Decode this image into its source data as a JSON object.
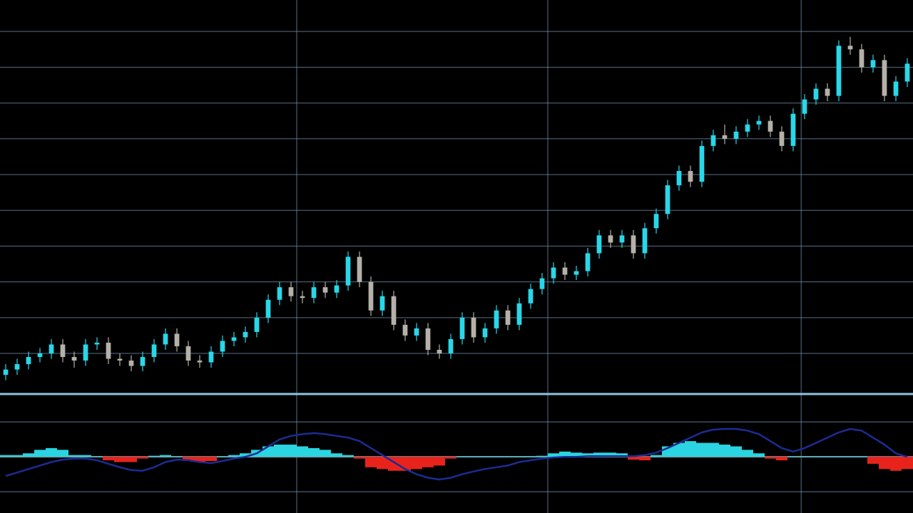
{
  "chart_data": [
    {
      "type": "candlestick",
      "up_color": "#29d7e8",
      "down_color": "#b5b1a9",
      "grid_color": "#6d8ea8",
      "xlim": [
        -0.5,
        79.5
      ],
      "xticks": [
        25.5,
        47.5,
        69.7
      ],
      "ylim": [
        -1.35,
        108.8
      ],
      "yticks": [
        10,
        20,
        30,
        40,
        50,
        60,
        70,
        80,
        90,
        100
      ],
      "grid": true,
      "open": [
        4,
        5.5,
        7,
        9,
        10,
        12.5,
        9,
        8,
        12.5,
        13,
        8.5,
        8,
        6.5,
        9,
        12.5,
        15.5,
        12,
        8,
        7.5,
        10.5,
        13.5,
        14.5,
        16,
        20,
        25,
        28.5,
        26,
        25.5,
        28.5,
        27,
        29,
        37,
        30,
        22,
        26,
        18,
        15,
        17,
        11,
        10,
        14,
        20,
        14.5,
        17,
        22,
        18,
        24,
        28,
        31,
        34,
        32,
        33,
        38,
        43,
        41,
        43,
        38,
        45,
        49,
        57,
        61,
        58,
        68,
        71,
        70,
        72,
        74,
        75,
        72,
        68,
        77,
        81,
        84,
        82,
        96,
        95,
        90,
        92,
        82,
        86
      ],
      "high": [
        7,
        8.5,
        10.5,
        11.5,
        14,
        14,
        10.5,
        14,
        14.5,
        14.5,
        10,
        9.5,
        10.5,
        14,
        17,
        17,
        13.5,
        9.5,
        12,
        15,
        16,
        17.5,
        21.5,
        26.5,
        30,
        30,
        27.5,
        30,
        30,
        30.5,
        38.5,
        38.5,
        31.5,
        27.5,
        27.5,
        19.5,
        18.5,
        18.5,
        12.5,
        15.5,
        21.5,
        21.5,
        18.5,
        23.5,
        23.5,
        25.5,
        29.5,
        32.5,
        35.5,
        35.5,
        34.5,
        39.5,
        44.5,
        44.5,
        44.5,
        44.5,
        46.5,
        50.5,
        58.5,
        62.5,
        62.5,
        69.5,
        72.5,
        74,
        73.5,
        75.5,
        76.5,
        76.5,
        73.5,
        78.5,
        82.5,
        85.5,
        85.5,
        97.5,
        98.5,
        96.5,
        93.5,
        93.5,
        87.5,
        92.5
      ],
      "low": [
        2.5,
        4,
        5.5,
        7.5,
        8.5,
        7.5,
        6,
        6.5,
        11,
        7,
        6.5,
        5,
        5,
        7.5,
        11,
        10.5,
        6.5,
        6,
        6,
        9,
        12,
        13,
        14.5,
        18.5,
        23.5,
        24.5,
        24,
        24,
        25.5,
        25.5,
        27.5,
        28.5,
        20.5,
        20.5,
        16.5,
        13.5,
        13.5,
        9.5,
        8.5,
        8.5,
        12.5,
        13,
        13,
        15.5,
        16.5,
        16.5,
        22.5,
        26.5,
        29.5,
        30.5,
        30.5,
        31.5,
        36.5,
        39.5,
        39.5,
        36.5,
        36.5,
        43.5,
        47.5,
        55.5,
        56.5,
        56.5,
        66.5,
        68.5,
        68.5,
        70.5,
        72.5,
        70.5,
        66.5,
        66.5,
        75.5,
        79.5,
        80.5,
        80.5,
        93.5,
        88.5,
        88.5,
        80.5,
        80.5,
        84.5
      ],
      "close": [
        5.5,
        7,
        9,
        10,
        12.5,
        9,
        8,
        12.5,
        13,
        8.5,
        8,
        6.5,
        9,
        12.5,
        15.5,
        12,
        8,
        7.5,
        10.5,
        13.5,
        14.5,
        16,
        20,
        25,
        28.5,
        26,
        25.5,
        28.5,
        27,
        29,
        37,
        30,
        22,
        26,
        18,
        15,
        17,
        11,
        10,
        14,
        20,
        14.5,
        17,
        22,
        18,
        24,
        28,
        31,
        34,
        32,
        33,
        38,
        43,
        41,
        43,
        38,
        45,
        49,
        57,
        61,
        58,
        68,
        71,
        70,
        72,
        74,
        75,
        72,
        68,
        77,
        81,
        84,
        82,
        96,
        95,
        90,
        92,
        82,
        86,
        91
      ]
    },
    {
      "type": "macd",
      "xlim": [
        -0.5,
        79.5
      ],
      "ylim": [
        -1.61,
        1.8
      ],
      "yticks": [
        -1,
        0,
        1
      ],
      "grid": true,
      "grid_color": "#6d8ea8",
      "zero_color": "#9aa3aa",
      "positive_color": "#2ad4e0",
      "negative_color": "#e8231c",
      "signal_color": "#1c2c94",
      "histogram_values": [
        0.05,
        0.05,
        0.1,
        0.2,
        0.25,
        0.2,
        0.05,
        0.05,
        0.02,
        -0.1,
        -0.15,
        -0.15,
        -0.05,
        0.03,
        0.05,
        0.02,
        -0.1,
        -0.15,
        -0.12,
        0.02,
        0.05,
        0.1,
        0.2,
        0.3,
        0.35,
        0.35,
        0.3,
        0.25,
        0.2,
        0.1,
        0.05,
        -0.05,
        -0.3,
        -0.35,
        -0.4,
        -0.4,
        -0.35,
        -0.3,
        -0.25,
        -0.05,
        0.02,
        0.02,
        0.02,
        0.02,
        0.02,
        0.02,
        0.02,
        0.03,
        0.1,
        0.15,
        0.12,
        0.1,
        0.12,
        0.12,
        0.1,
        -0.08,
        -0.1,
        0.05,
        0.3,
        0.4,
        0.45,
        0.4,
        0.4,
        0.35,
        0.3,
        0.2,
        0.1,
        -0.05,
        -0.1,
        0.02,
        0.02,
        0.02,
        0.02,
        0.02,
        0.02,
        0.02,
        -0.2,
        -0.35,
        -0.4,
        -0.35
      ],
      "signal_values": [
        -0.55,
        -0.45,
        -0.35,
        -0.25,
        -0.15,
        -0.08,
        -0.05,
        -0.05,
        -0.1,
        -0.2,
        -0.3,
        -0.38,
        -0.4,
        -0.3,
        -0.15,
        -0.08,
        -0.1,
        -0.15,
        -0.18,
        -0.12,
        -0.05,
        0,
        0.1,
        0.3,
        0.5,
        0.6,
        0.65,
        0.68,
        0.65,
        0.6,
        0.55,
        0.45,
        0.25,
        0.05,
        -0.15,
        -0.35,
        -0.5,
        -0.6,
        -0.65,
        -0.6,
        -0.5,
        -0.42,
        -0.35,
        -0.3,
        -0.25,
        -0.15,
        -0.1,
        -0.05,
        -0.02,
        0,
        0,
        0.02,
        0.02,
        0.02,
        0.02,
        0.02,
        0.05,
        0.12,
        0.25,
        0.4,
        0.55,
        0.7,
        0.78,
        0.8,
        0.8,
        0.75,
        0.65,
        0.45,
        0.25,
        0.15,
        0.25,
        0.4,
        0.55,
        0.7,
        0.8,
        0.75,
        0.55,
        0.35,
        0.1,
        0
      ]
    }
  ]
}
